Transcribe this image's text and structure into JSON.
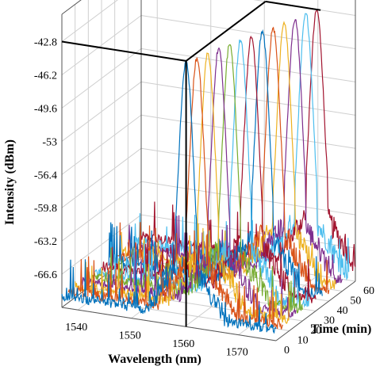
{
  "chart_data": {
    "type": "line",
    "projection": "3d-waterfall",
    "title": "",
    "xlabel": "Wavelength (nm)",
    "ylabel": "Time (min)",
    "zlabel": "Intensity (dBm)",
    "xlim": [
      1537,
      1577
    ],
    "ylim": [
      0,
      60
    ],
    "zlim": [
      -70,
      -40
    ],
    "grid": true,
    "legend": "none",
    "xticks": [
      "1540",
      "1550",
      "1560",
      "1570"
    ],
    "xtick_values": [
      1540,
      1550,
      1560,
      1570
    ],
    "yticks": [
      "0",
      "10",
      "20",
      "30",
      "40",
      "50",
      "60"
    ],
    "ytick_values": [
      0,
      10,
      20,
      30,
      40,
      50,
      60
    ],
    "zticks": [
      "-42.8",
      "-46.2",
      "-49.6",
      "-53",
      "-56.4",
      "-59.8",
      "-63.2",
      "-66.6"
    ],
    "ztick_values": [
      -42.8,
      -46.2,
      -49.6,
      -53,
      -56.4,
      -59.8,
      -63.2,
      -66.6
    ],
    "noise_floor": -69.5,
    "peak_width_nm": 1.4,
    "marker": {
      "wavelength": 1560.2,
      "time": 0,
      "intensity": -42.8,
      "color": "#000000"
    },
    "series": [
      {
        "time": 0,
        "peak_wavelength": 1560.2,
        "peak_intensity": -42.8,
        "color": "#0072bd"
      },
      {
        "time": 5,
        "peak_wavelength": 1561.0,
        "peak_intensity": -42.9,
        "color": "#d95319"
      },
      {
        "time": 10,
        "peak_wavelength": 1561.8,
        "peak_intensity": -42.9,
        "color": "#edb120"
      },
      {
        "time": 15,
        "peak_wavelength": 1562.6,
        "peak_intensity": -42.8,
        "color": "#7e2f8e"
      },
      {
        "time": 20,
        "peak_wavelength": 1563.4,
        "peak_intensity": -42.9,
        "color": "#77ac30"
      },
      {
        "time": 25,
        "peak_wavelength": 1564.2,
        "peak_intensity": -42.8,
        "color": "#4dbeee"
      },
      {
        "time": 30,
        "peak_wavelength": 1565.0,
        "peak_intensity": -42.9,
        "color": "#a2142f"
      },
      {
        "time": 35,
        "peak_wavelength": 1565.8,
        "peak_intensity": -42.8,
        "color": "#0072bd"
      },
      {
        "time": 40,
        "peak_wavelength": 1566.6,
        "peak_intensity": -42.9,
        "color": "#d95319"
      },
      {
        "time": 45,
        "peak_wavelength": 1567.4,
        "peak_intensity": -42.8,
        "color": "#edb120"
      },
      {
        "time": 50,
        "peak_wavelength": 1568.2,
        "peak_intensity": -42.9,
        "color": "#7e2f8e"
      },
      {
        "time": 55,
        "peak_wavelength": 1569.0,
        "peak_intensity": -42.8,
        "color": "#4dbeee"
      },
      {
        "time": 60,
        "peak_wavelength": 1569.8,
        "peak_intensity": -42.9,
        "color": "#a2142f"
      }
    ]
  }
}
